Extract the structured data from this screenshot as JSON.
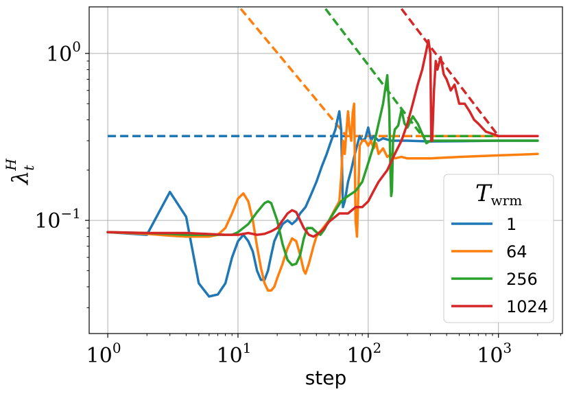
{
  "chart_data": {
    "type": "line",
    "title": "",
    "xlabel": "step",
    "ylabel": {
      "base": "λ",
      "sub": "t",
      "sup": "H"
    },
    "xscale": "log",
    "yscale": "log",
    "xlim": [
      0.72,
      3100
    ],
    "ylim": [
      0.021,
      1.9
    ],
    "grid": true,
    "x_ticks": [
      {
        "value": 1,
        "base": "10",
        "exp": "0"
      },
      {
        "value": 10,
        "base": "10",
        "exp": "1"
      },
      {
        "value": 100,
        "base": "10",
        "exp": "2"
      },
      {
        "value": 1000,
        "base": "10",
        "exp": "3"
      }
    ],
    "y_ticks": [
      {
        "value": 0.1,
        "base": "10",
        "exp": "−1"
      },
      {
        "value": 1,
        "base": "10",
        "exp": "0"
      }
    ],
    "legend": {
      "title": {
        "base": "T",
        "sub": "wrm"
      },
      "placement": "lower-right"
    },
    "series": [
      {
        "name": "1",
        "color": "#1f77b4",
        "points": [
          [
            1,
            0.085
          ],
          [
            2,
            0.082
          ],
          [
            3,
            0.148
          ],
          [
            4,
            0.105
          ],
          [
            5,
            0.042
          ],
          [
            6,
            0.035
          ],
          [
            7,
            0.036
          ],
          [
            8,
            0.042
          ],
          [
            9,
            0.06
          ],
          [
            10,
            0.075
          ],
          [
            11,
            0.082
          ],
          [
            12,
            0.075
          ],
          [
            13,
            0.065
          ],
          [
            14,
            0.05
          ],
          [
            15,
            0.044
          ],
          [
            16,
            0.044
          ],
          [
            17,
            0.05
          ],
          [
            18,
            0.062
          ],
          [
            19,
            0.075
          ],
          [
            20,
            0.082
          ],
          [
            22,
            0.095
          ],
          [
            24,
            0.1
          ],
          [
            26,
            0.095
          ],
          [
            28,
            0.1
          ],
          [
            30,
            0.11
          ],
          [
            33,
            0.12
          ],
          [
            36,
            0.14
          ],
          [
            40,
            0.17
          ],
          [
            44,
            0.21
          ],
          [
            48,
            0.25
          ],
          [
            52,
            0.3
          ],
          [
            56,
            0.35
          ],
          [
            58,
            0.4
          ],
          [
            60,
            0.45
          ],
          [
            62,
            0.35
          ],
          [
            64,
            0.12
          ],
          [
            66,
            0.13
          ],
          [
            70,
            0.17
          ],
          [
            74,
            0.2
          ],
          [
            78,
            0.24
          ],
          [
            82,
            0.28
          ],
          [
            86,
            0.32
          ],
          [
            90,
            0.3
          ],
          [
            95,
            0.31
          ],
          [
            100,
            0.36
          ],
          [
            105,
            0.3
          ],
          [
            110,
            0.32
          ],
          [
            120,
            0.3
          ],
          [
            130,
            0.31
          ],
          [
            150,
            0.3
          ],
          [
            200,
            0.3
          ],
          [
            300,
            0.297
          ],
          [
            500,
            0.298
          ],
          [
            1000,
            0.3
          ],
          [
            2000,
            0.3
          ]
        ],
        "asymptote": {
          "type": "constant",
          "value": 0.32,
          "x_from": 1,
          "x_to": 2000
        }
      },
      {
        "name": "64",
        "color": "#ff7f0e",
        "points": [
          [
            1,
            0.085
          ],
          [
            2,
            0.083
          ],
          [
            3,
            0.081
          ],
          [
            4,
            0.08
          ],
          [
            5,
            0.08
          ],
          [
            6,
            0.08
          ],
          [
            7,
            0.082
          ],
          [
            8,
            0.09
          ],
          [
            9,
            0.11
          ],
          [
            10,
            0.135
          ],
          [
            11,
            0.145
          ],
          [
            12,
            0.13
          ],
          [
            13,
            0.1
          ],
          [
            14,
            0.07
          ],
          [
            15,
            0.052
          ],
          [
            16,
            0.042
          ],
          [
            17,
            0.038
          ],
          [
            18,
            0.038
          ],
          [
            19,
            0.04
          ],
          [
            20,
            0.045
          ],
          [
            22,
            0.055
          ],
          [
            24,
            0.068
          ],
          [
            26,
            0.078
          ],
          [
            28,
            0.075
          ],
          [
            30,
            0.062
          ],
          [
            32,
            0.05
          ],
          [
            33,
            0.048
          ],
          [
            35,
            0.055
          ],
          [
            38,
            0.07
          ],
          [
            40,
            0.08
          ],
          [
            45,
            0.09
          ],
          [
            50,
            0.1
          ],
          [
            55,
            0.115
          ],
          [
            60,
            0.13
          ],
          [
            62,
            0.18
          ],
          [
            64,
            0.3
          ],
          [
            66,
            0.25
          ],
          [
            68,
            0.34
          ],
          [
            70,
            0.45
          ],
          [
            72,
            0.35
          ],
          [
            74,
            0.3
          ],
          [
            76,
            0.44
          ],
          [
            78,
            0.5
          ],
          [
            80,
            0.1
          ],
          [
            82,
            0.08
          ],
          [
            84,
            0.15
          ],
          [
            86,
            0.28
          ],
          [
            90,
            0.3
          ],
          [
            95,
            0.3
          ],
          [
            100,
            0.28
          ],
          [
            105,
            0.3
          ],
          [
            110,
            0.27
          ],
          [
            115,
            0.29
          ],
          [
            120,
            0.25
          ],
          [
            130,
            0.27
          ],
          [
            140,
            0.24
          ],
          [
            150,
            0.25
          ],
          [
            160,
            0.235
          ],
          [
            180,
            0.24
          ],
          [
            200,
            0.235
          ],
          [
            300,
            0.235
          ],
          [
            500,
            0.24
          ],
          [
            1000,
            0.245
          ],
          [
            2000,
            0.25
          ]
        ],
        "asymptote": {
          "type": "power",
          "points": [
            [
              10.5,
              1.85
            ],
            [
              68,
              0.32
            ],
            [
              2000,
              0.32
            ]
          ]
        }
      },
      {
        "name": "256",
        "color": "#2ca02c",
        "points": [
          [
            1,
            0.085
          ],
          [
            2,
            0.084
          ],
          [
            3,
            0.083
          ],
          [
            4,
            0.082
          ],
          [
            5,
            0.082
          ],
          [
            6,
            0.082
          ],
          [
            7,
            0.082
          ],
          [
            8,
            0.082
          ],
          [
            9,
            0.082
          ],
          [
            10,
            0.085
          ],
          [
            12,
            0.095
          ],
          [
            14,
            0.112
          ],
          [
            16,
            0.127
          ],
          [
            17,
            0.13
          ],
          [
            18,
            0.127
          ],
          [
            20,
            0.1
          ],
          [
            22,
            0.072
          ],
          [
            24,
            0.058
          ],
          [
            26,
            0.054
          ],
          [
            28,
            0.055
          ],
          [
            30,
            0.062
          ],
          [
            32,
            0.078
          ],
          [
            34,
            0.09
          ],
          [
            37,
            0.09
          ],
          [
            40,
            0.085
          ],
          [
            43,
            0.082
          ],
          [
            46,
            0.088
          ],
          [
            50,
            0.1
          ],
          [
            56,
            0.115
          ],
          [
            62,
            0.13
          ],
          [
            70,
            0.14
          ],
          [
            80,
            0.15
          ],
          [
            90,
            0.17
          ],
          [
            100,
            0.22
          ],
          [
            110,
            0.28
          ],
          [
            120,
            0.38
          ],
          [
            130,
            0.5
          ],
          [
            140,
            0.74
          ],
          [
            145,
            0.46
          ],
          [
            148,
            0.2
          ],
          [
            150,
            0.14
          ],
          [
            152,
            0.15
          ],
          [
            155,
            0.3
          ],
          [
            160,
            0.35
          ],
          [
            170,
            0.37
          ],
          [
            180,
            0.46
          ],
          [
            190,
            0.38
          ],
          [
            200,
            0.36
          ],
          [
            220,
            0.42
          ],
          [
            240,
            0.38
          ],
          [
            260,
            0.33
          ],
          [
            280,
            0.29
          ],
          [
            300,
            0.3
          ],
          [
            400,
            0.3
          ],
          [
            500,
            0.3
          ],
          [
            1000,
            0.3
          ],
          [
            2000,
            0.3
          ]
        ],
        "asymptote": {
          "type": "power",
          "points": [
            [
              47,
              1.85
            ],
            [
              260,
              0.32
            ],
            [
              2000,
              0.32
            ]
          ]
        }
      },
      {
        "name": "1024",
        "color": "#d62728",
        "points": [
          [
            1,
            0.085
          ],
          [
            2,
            0.084
          ],
          [
            4,
            0.084
          ],
          [
            8,
            0.082
          ],
          [
            10,
            0.082
          ],
          [
            12,
            0.084
          ],
          [
            14,
            0.082
          ],
          [
            16,
            0.083
          ],
          [
            18,
            0.086
          ],
          [
            20,
            0.09
          ],
          [
            22,
            0.1
          ],
          [
            24,
            0.11
          ],
          [
            26,
            0.115
          ],
          [
            28,
            0.112
          ],
          [
            30,
            0.1
          ],
          [
            32,
            0.09
          ],
          [
            35,
            0.082
          ],
          [
            38,
            0.08
          ],
          [
            40,
            0.082
          ],
          [
            45,
            0.088
          ],
          [
            50,
            0.098
          ],
          [
            60,
            0.11
          ],
          [
            70,
            0.11
          ],
          [
            80,
            0.12
          ],
          [
            90,
            0.12
          ],
          [
            100,
            0.13
          ],
          [
            110,
            0.15
          ],
          [
            120,
            0.17
          ],
          [
            140,
            0.2
          ],
          [
            160,
            0.25
          ],
          [
            180,
            0.3
          ],
          [
            200,
            0.38
          ],
          [
            220,
            0.5
          ],
          [
            240,
            0.65
          ],
          [
            260,
            0.8
          ],
          [
            280,
            1.05
          ],
          [
            290,
            1.2
          ],
          [
            300,
            1.0
          ],
          [
            305,
            0.3
          ],
          [
            310,
            0.3
          ],
          [
            320,
            0.6
          ],
          [
            330,
            0.9
          ],
          [
            340,
            0.8
          ],
          [
            360,
            0.95
          ],
          [
            380,
            0.75
          ],
          [
            400,
            0.7
          ],
          [
            430,
            0.6
          ],
          [
            460,
            0.65
          ],
          [
            500,
            0.5
          ],
          [
            550,
            0.5
          ],
          [
            600,
            0.45
          ],
          [
            650,
            0.4
          ],
          [
            700,
            0.38
          ],
          [
            800,
            0.34
          ],
          [
            900,
            0.33
          ],
          [
            1000,
            0.32
          ],
          [
            1500,
            0.32
          ],
          [
            2000,
            0.32
          ]
        ],
        "asymptote": {
          "type": "power",
          "points": [
            [
              180,
              1.85
            ],
            [
              1000,
              0.32
            ],
            [
              2000,
              0.32
            ]
          ]
        }
      }
    ]
  }
}
